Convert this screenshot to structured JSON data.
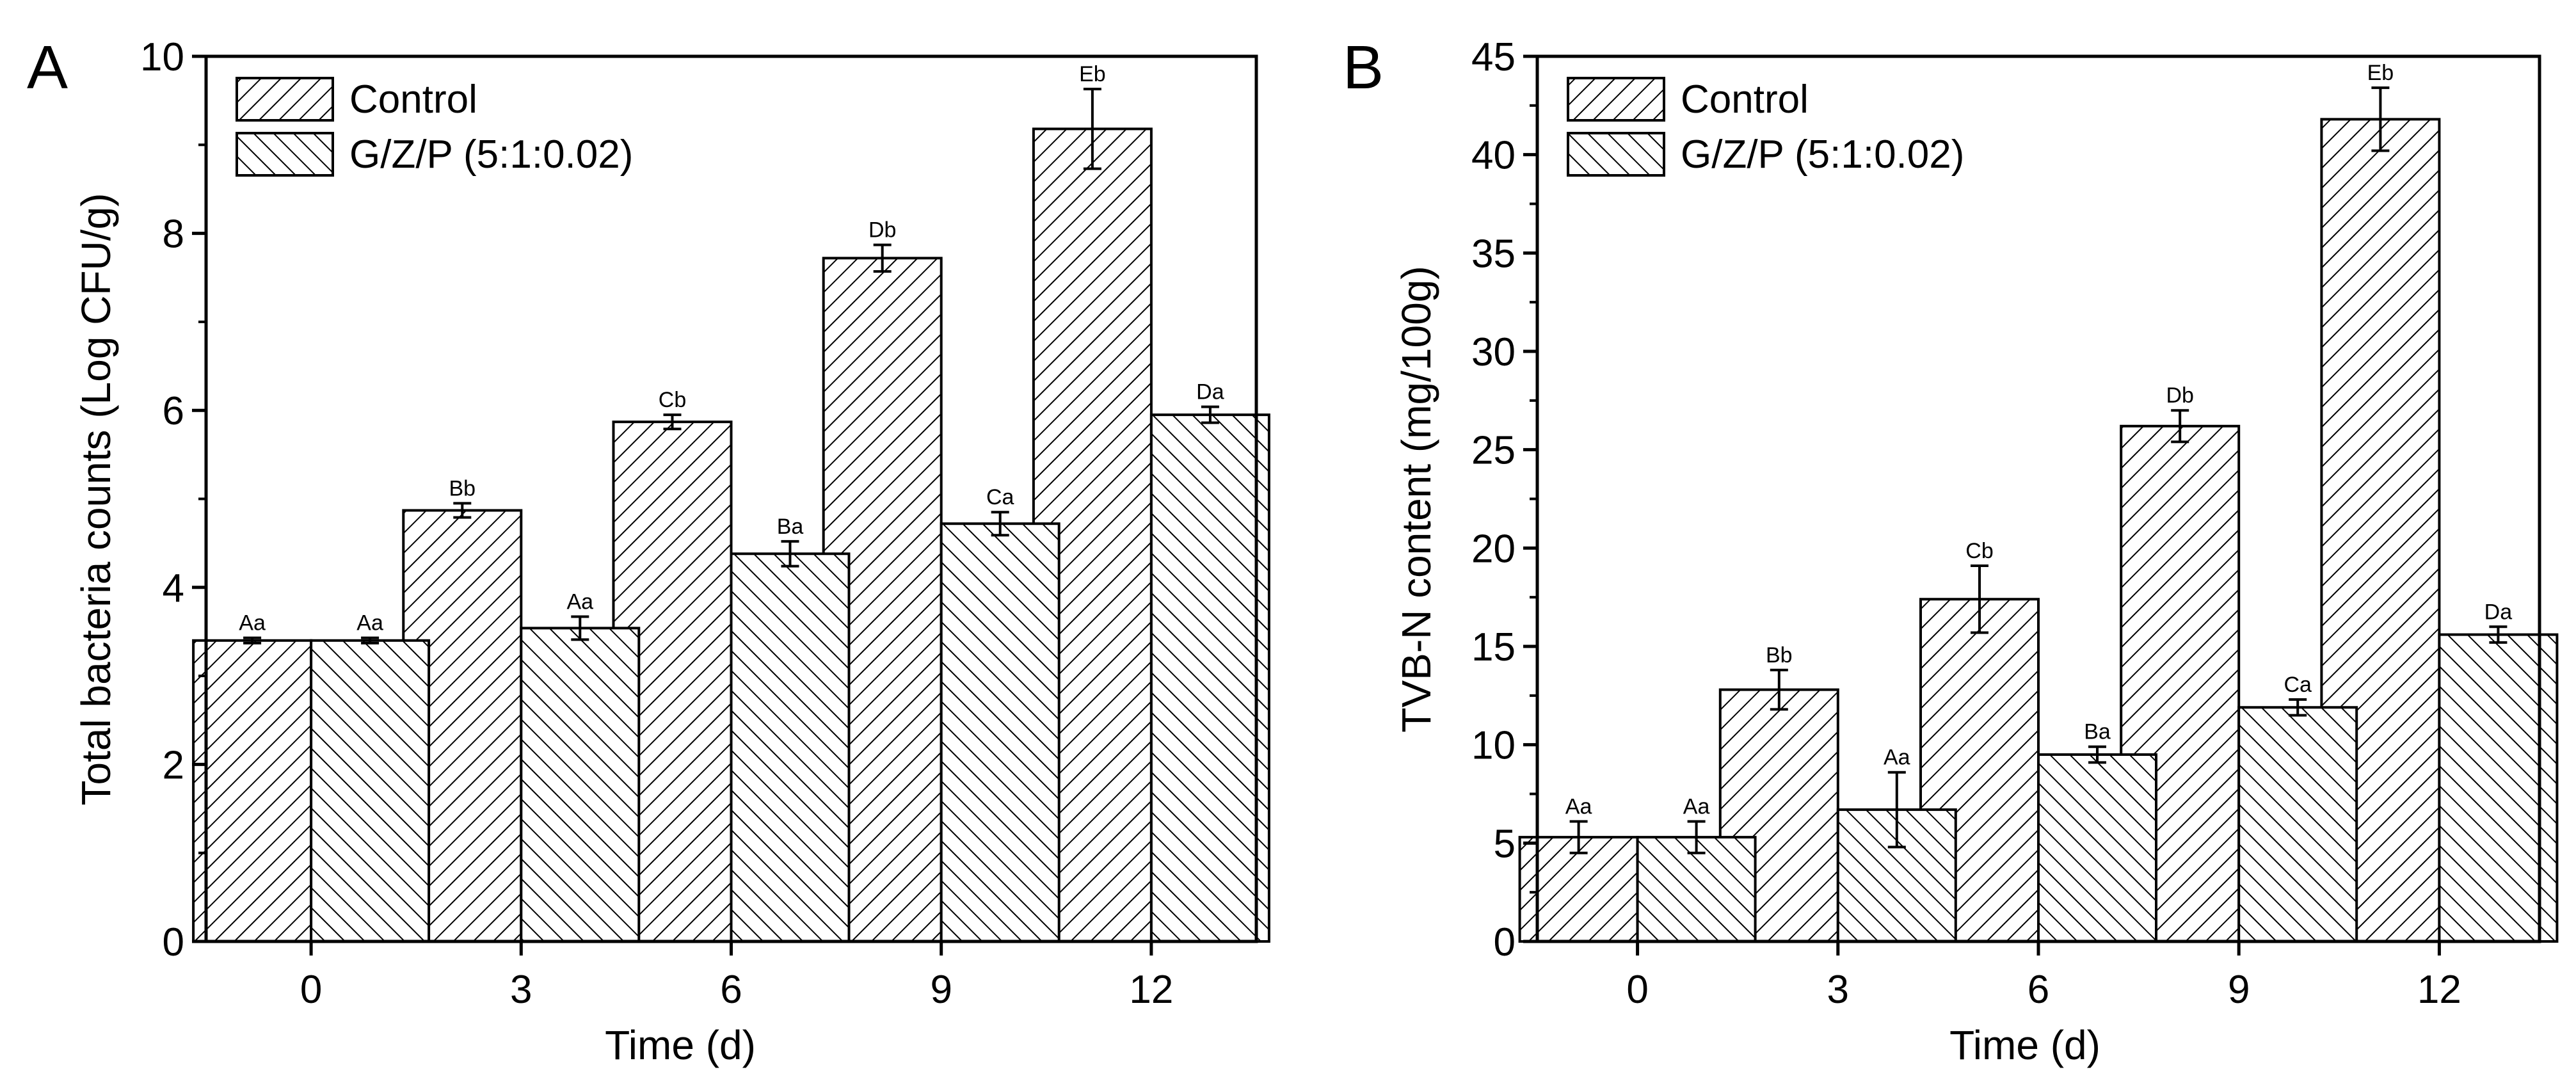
{
  "chart_data": [
    {
      "type": "bar",
      "panel_label": "A",
      "categories": [
        "0",
        "3",
        "6",
        "9",
        "12"
      ],
      "xlabel": "Time (d)",
      "ylabel": "Total bacteria counts (Log CFU/g)",
      "ylim": [
        0,
        10
      ],
      "yticks": [
        0,
        2,
        4,
        6,
        8,
        10
      ],
      "yticks_labels": [
        "0",
        "2",
        "4",
        "6",
        "8",
        "10"
      ],
      "legend_position": "top-left",
      "grid": false,
      "series": [
        {
          "name": "Control",
          "pattern": "hatch-forward",
          "values": [
            3.4,
            4.87,
            5.87,
            7.72,
            9.18
          ],
          "errors": [
            0.03,
            0.08,
            0.08,
            0.15,
            0.45
          ],
          "labels": [
            "Aa",
            "Bb",
            "Cb",
            "Db",
            "Eb"
          ]
        },
        {
          "name": "G/Z/P (5:1:0.02)",
          "pattern": "hatch-back",
          "values": [
            3.4,
            3.54,
            4.38,
            4.72,
            5.95
          ],
          "errors": [
            0.03,
            0.13,
            0.14,
            0.13,
            0.09
          ],
          "labels": [
            "Aa",
            "Aa",
            "Ba",
            "Ca",
            "Da"
          ]
        }
      ]
    },
    {
      "type": "bar",
      "panel_label": "B",
      "categories": [
        "0",
        "3",
        "6",
        "9",
        "12"
      ],
      "xlabel": "Time (d)",
      "ylabel": "TVB-N content (mg/100g)",
      "ylim": [
        0,
        45
      ],
      "yticks": [
        0,
        5,
        10,
        15,
        20,
        25,
        30,
        35,
        40,
        45
      ],
      "yticks_labels": [
        "0",
        "5",
        "10",
        "15",
        "20",
        "25",
        "30",
        "35",
        "40",
        "45"
      ],
      "legend_position": "top-left",
      "grid": false,
      "series": [
        {
          "name": "Control",
          "pattern": "hatch-forward",
          "values": [
            5.3,
            12.8,
            17.4,
            26.2,
            41.8
          ],
          "errors": [
            0.8,
            1.0,
            1.7,
            0.8,
            1.6
          ],
          "labels": [
            "Aa",
            "Bb",
            "Cb",
            "Db",
            "Eb"
          ]
        },
        {
          "name": "G/Z/P (5:1:0.02)",
          "pattern": "hatch-back",
          "values": [
            5.3,
            6.7,
            9.5,
            11.9,
            15.6
          ],
          "errors": [
            0.8,
            1.9,
            0.4,
            0.4,
            0.4
          ],
          "labels": [
            "Aa",
            "Aa",
            "Ba",
            "Ca",
            "Da"
          ]
        }
      ]
    }
  ]
}
